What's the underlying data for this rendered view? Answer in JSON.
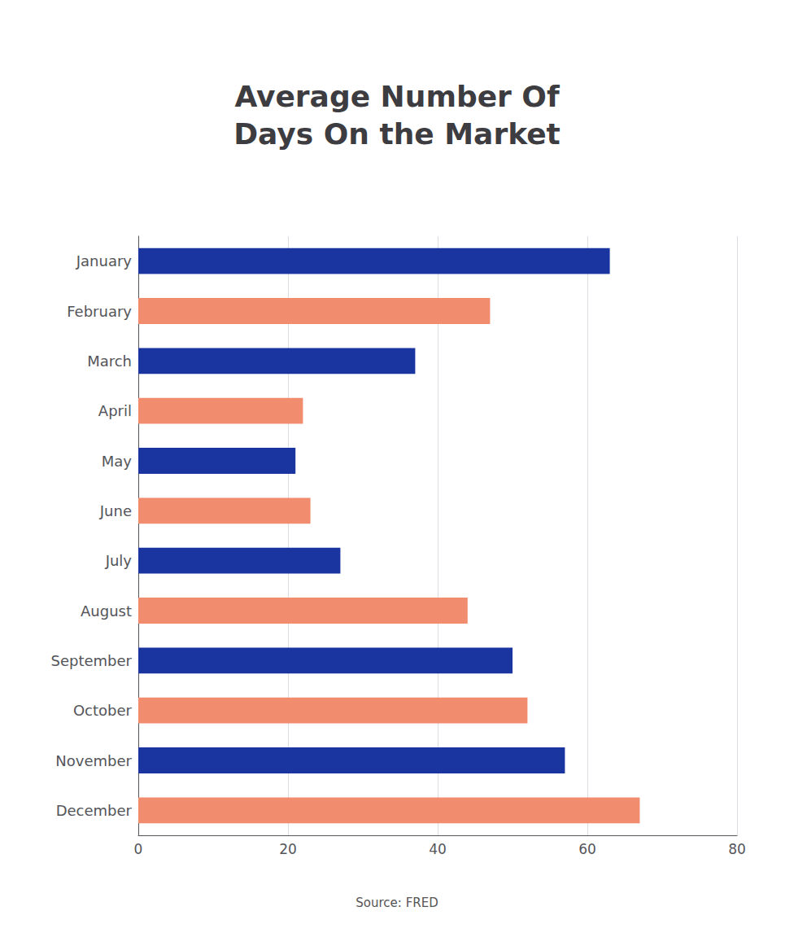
{
  "chart_data": {
    "type": "bar",
    "orientation": "horizontal",
    "title": "Average Number Of\nDays On the Market",
    "categories": [
      "January",
      "February",
      "March",
      "April",
      "May",
      "June",
      "July",
      "August",
      "September",
      "October",
      "November",
      "December"
    ],
    "values": [
      63,
      47,
      37,
      22,
      21,
      23,
      27,
      44,
      50,
      52,
      57,
      67
    ],
    "colors": [
      "#1a35a0",
      "#f28c6e",
      "#1a35a0",
      "#f28c6e",
      "#1a35a0",
      "#f28c6e",
      "#1a35a0",
      "#f28c6e",
      "#1a35a0",
      "#f28c6e",
      "#1a35a0",
      "#f28c6e"
    ],
    "xlim": [
      0,
      80
    ],
    "xticks": [
      0,
      20,
      40,
      60,
      80
    ],
    "grid": true,
    "annotations": [
      "Source: FRED"
    ]
  }
}
